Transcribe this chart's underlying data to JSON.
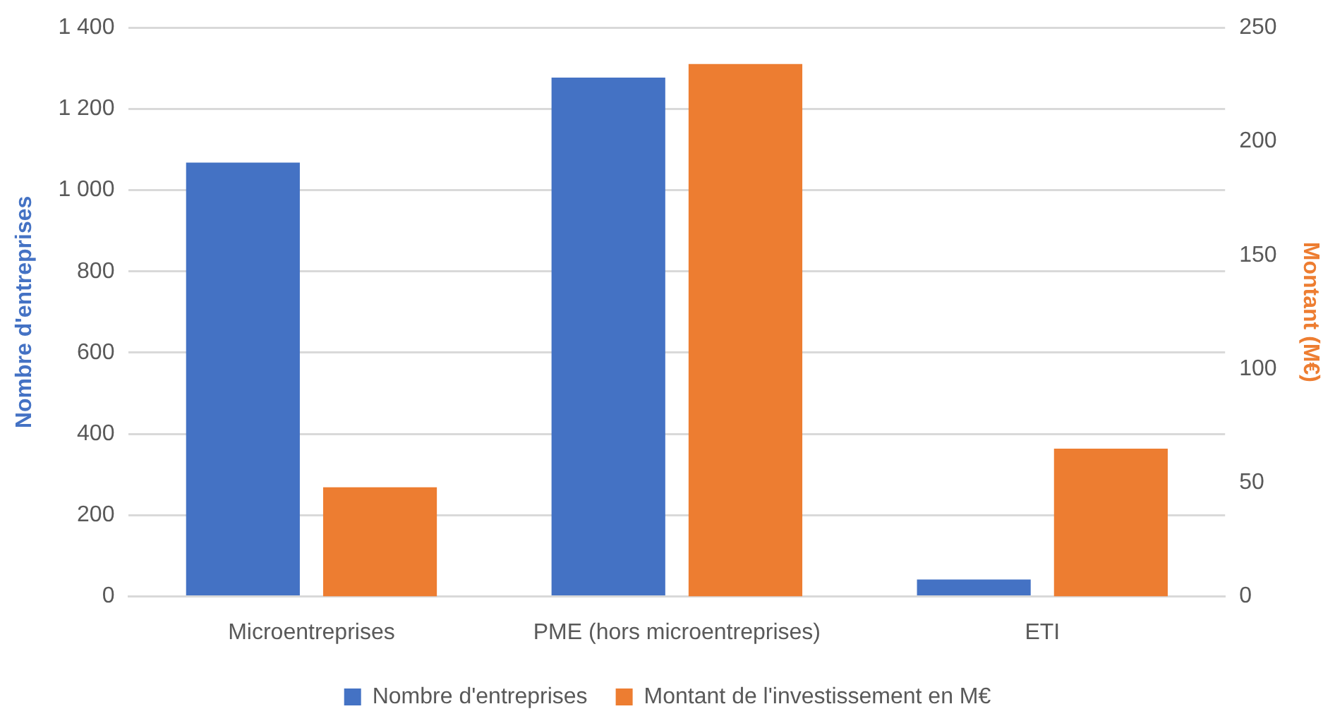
{
  "chart_data": {
    "type": "bar",
    "categories": [
      "Microentreprises",
      "PME (hors microentreprises)",
      "ETI"
    ],
    "series": [
      {
        "name": "Nombre d'entreprises",
        "color": "#4472c4",
        "values": [
          1068,
          1277,
          42
        ]
      },
      {
        "name": "Montant de l'investissement en M€",
        "color": "#ed7d31",
        "values": [
          48,
          234,
          65
        ],
        "axis": "y2"
      }
    ],
    "ylabel": "Nombre d'entreprises",
    "y2label": "Montant (M€)",
    "ylim": [
      0,
      1400
    ],
    "yticks": [
      0,
      {
        "value": 200,
        "label": "200"
      },
      {
        "value": 400,
        "label": "400"
      },
      {
        "value": 600,
        "label": "600"
      },
      {
        "value": 800,
        "label": "800"
      },
      {
        "value": 1000,
        "label": "1 000"
      },
      {
        "value": 1200,
        "label": "1 200"
      },
      {
        "value": 1400,
        "label": "1 400"
      }
    ],
    "y2lim": [
      0,
      250
    ],
    "y2ticks": [
      0,
      50,
      100,
      150,
      200,
      250
    ],
    "grid": "y",
    "legend": "bottom"
  }
}
